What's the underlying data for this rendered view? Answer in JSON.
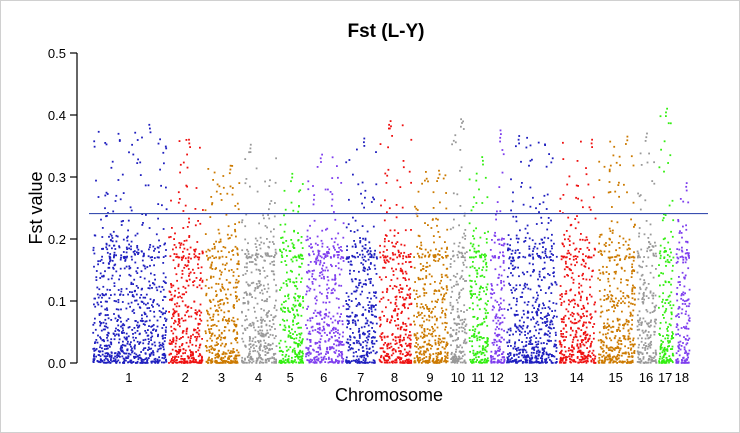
{
  "chart_data": {
    "type": "scatter",
    "title": "Fst (L-Y)",
    "xlabel": "Chromosome",
    "ylabel": "Fst value",
    "ylim": [
      0,
      0.5
    ],
    "yticks": [
      "0.0",
      "0.1",
      "0.2",
      "0.3",
      "0.4",
      "0.5"
    ],
    "threshold": 0.241,
    "threshold_color": "#3a4fb0",
    "chromosomes": [
      {
        "label": "1",
        "color": "#1f1fbf",
        "relative_length": 75,
        "peak": 0.384
      },
      {
        "label": "2",
        "color": "#ee1111",
        "relative_length": 36,
        "peak": 0.36
      },
      {
        "label": "3",
        "color": "#cc7a00",
        "relative_length": 36,
        "peak": 0.318
      },
      {
        "label": "4",
        "color": "#999999",
        "relative_length": 37,
        "peak": 0.352
      },
      {
        "label": "5",
        "color": "#33ee11",
        "relative_length": 26,
        "peak": 0.305
      },
      {
        "label": "6",
        "color": "#7f3fee",
        "relative_length": 40,
        "peak": 0.336
      },
      {
        "label": "7",
        "color": "#1f1fbf",
        "relative_length": 33,
        "peak": 0.362
      },
      {
        "label": "8",
        "color": "#ee1111",
        "relative_length": 34,
        "peak": 0.39
      },
      {
        "label": "9",
        "color": "#cc7a00",
        "relative_length": 36,
        "peak": 0.31
      },
      {
        "label": "10",
        "color": "#999999",
        "relative_length": 19,
        "peak": 0.393
      },
      {
        "label": "11",
        "color": "#33ee11",
        "relative_length": 21,
        "peak": 0.332
      },
      {
        "label": "12",
        "color": "#7f3fee",
        "relative_length": 16,
        "peak": 0.375
      },
      {
        "label": "13",
        "color": "#1f1fbf",
        "relative_length": 52,
        "peak": 0.366
      },
      {
        "label": "14",
        "color": "#ee1111",
        "relative_length": 38,
        "peak": 0.36
      },
      {
        "label": "15",
        "color": "#cc7a00",
        "relative_length": 39,
        "peak": 0.365
      },
      {
        "label": "16",
        "color": "#999999",
        "relative_length": 21,
        "peak": 0.37
      },
      {
        "label": "17",
        "color": "#33ee11",
        "relative_length": 17,
        "peak": 0.41
      },
      {
        "label": "18",
        "color": "#7f3fee",
        "relative_length": 16,
        "peak": 0.29
      }
    ]
  }
}
